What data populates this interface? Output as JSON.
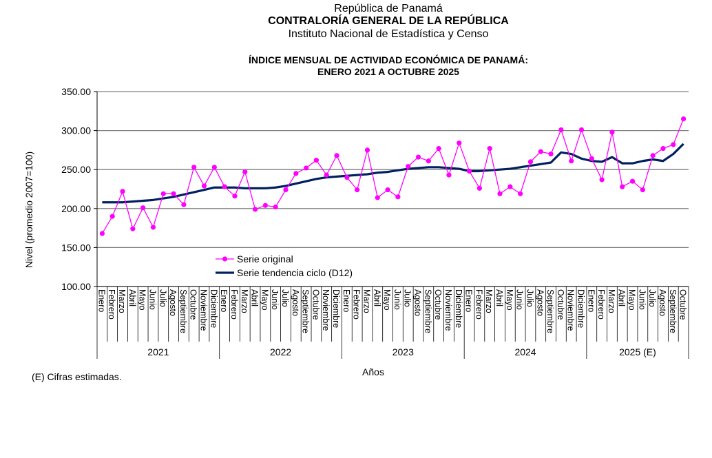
{
  "header": {
    "line1": "República de Panamá",
    "line2": "CONTRALORÍA  GENERAL DE LA REPÚBLICA",
    "line3": "Instituto Nacional de Estadística y Censo"
  },
  "footnote": "(E) Cifras estimadas.",
  "chart_data": {
    "type": "line",
    "title": "ÍNDICE MENSUAL DE ACTIVIDAD ECONÓMICA DE PANAMÁ:",
    "subtitle": "ENERO 2021 A OCTUBRE 2025",
    "xlabel": "Años",
    "ylabel": "Nivel (promedio 2007=100)",
    "ylim": [
      100,
      350
    ],
    "yticks": [
      "100.00",
      "150.00",
      "200.00",
      "250.00",
      "300.00",
      "350.00"
    ],
    "grid": true,
    "legend_position": "center-left",
    "months": [
      "Enero",
      "Febrero",
      "Marzo",
      "Abril",
      "Mayo",
      "Junio",
      "Julio",
      "Agosto",
      "Septiembre",
      "Octubre",
      "Noviembre",
      "Diciembre"
    ],
    "years": [
      {
        "label": "2021",
        "count": 12
      },
      {
        "label": "2022",
        "count": 12
      },
      {
        "label": "2023",
        "count": 12
      },
      {
        "label": "2024",
        "count": 12
      },
      {
        "label": "2025 (E)",
        "count": 10
      }
    ],
    "series": [
      {
        "name": "Serie original",
        "color": "#ff00ff",
        "values": [
          168,
          190,
          222,
          174,
          201,
          176,
          219,
          219,
          205,
          253,
          229,
          253,
          228,
          216,
          247,
          199,
          204,
          202,
          224,
          245,
          252,
          262,
          243,
          268,
          240,
          224,
          275,
          214,
          224,
          215,
          254,
          266,
          261,
          277,
          243,
          284,
          248,
          226,
          277,
          219,
          228,
          219,
          260,
          273,
          270,
          301,
          261,
          301,
          264,
          237,
          298,
          228,
          235,
          224,
          268,
          277,
          282,
          315
        ]
      },
      {
        "name": "Serie tendencia ciclo (D12)",
        "color": "#002060",
        "values": [
          208,
          208,
          208,
          209,
          210,
          211,
          213,
          215,
          218,
          221,
          224,
          227,
          227,
          227,
          226,
          226,
          226,
          227,
          229,
          232,
          235,
          238,
          240,
          241,
          242,
          243,
          244,
          246,
          247,
          249,
          251,
          252,
          253,
          253,
          252,
          251,
          248,
          248,
          249,
          250,
          251,
          253,
          255,
          257,
          259,
          272,
          270,
          264,
          261,
          260,
          266,
          258,
          258,
          261,
          263,
          261,
          270,
          283
        ]
      }
    ]
  }
}
